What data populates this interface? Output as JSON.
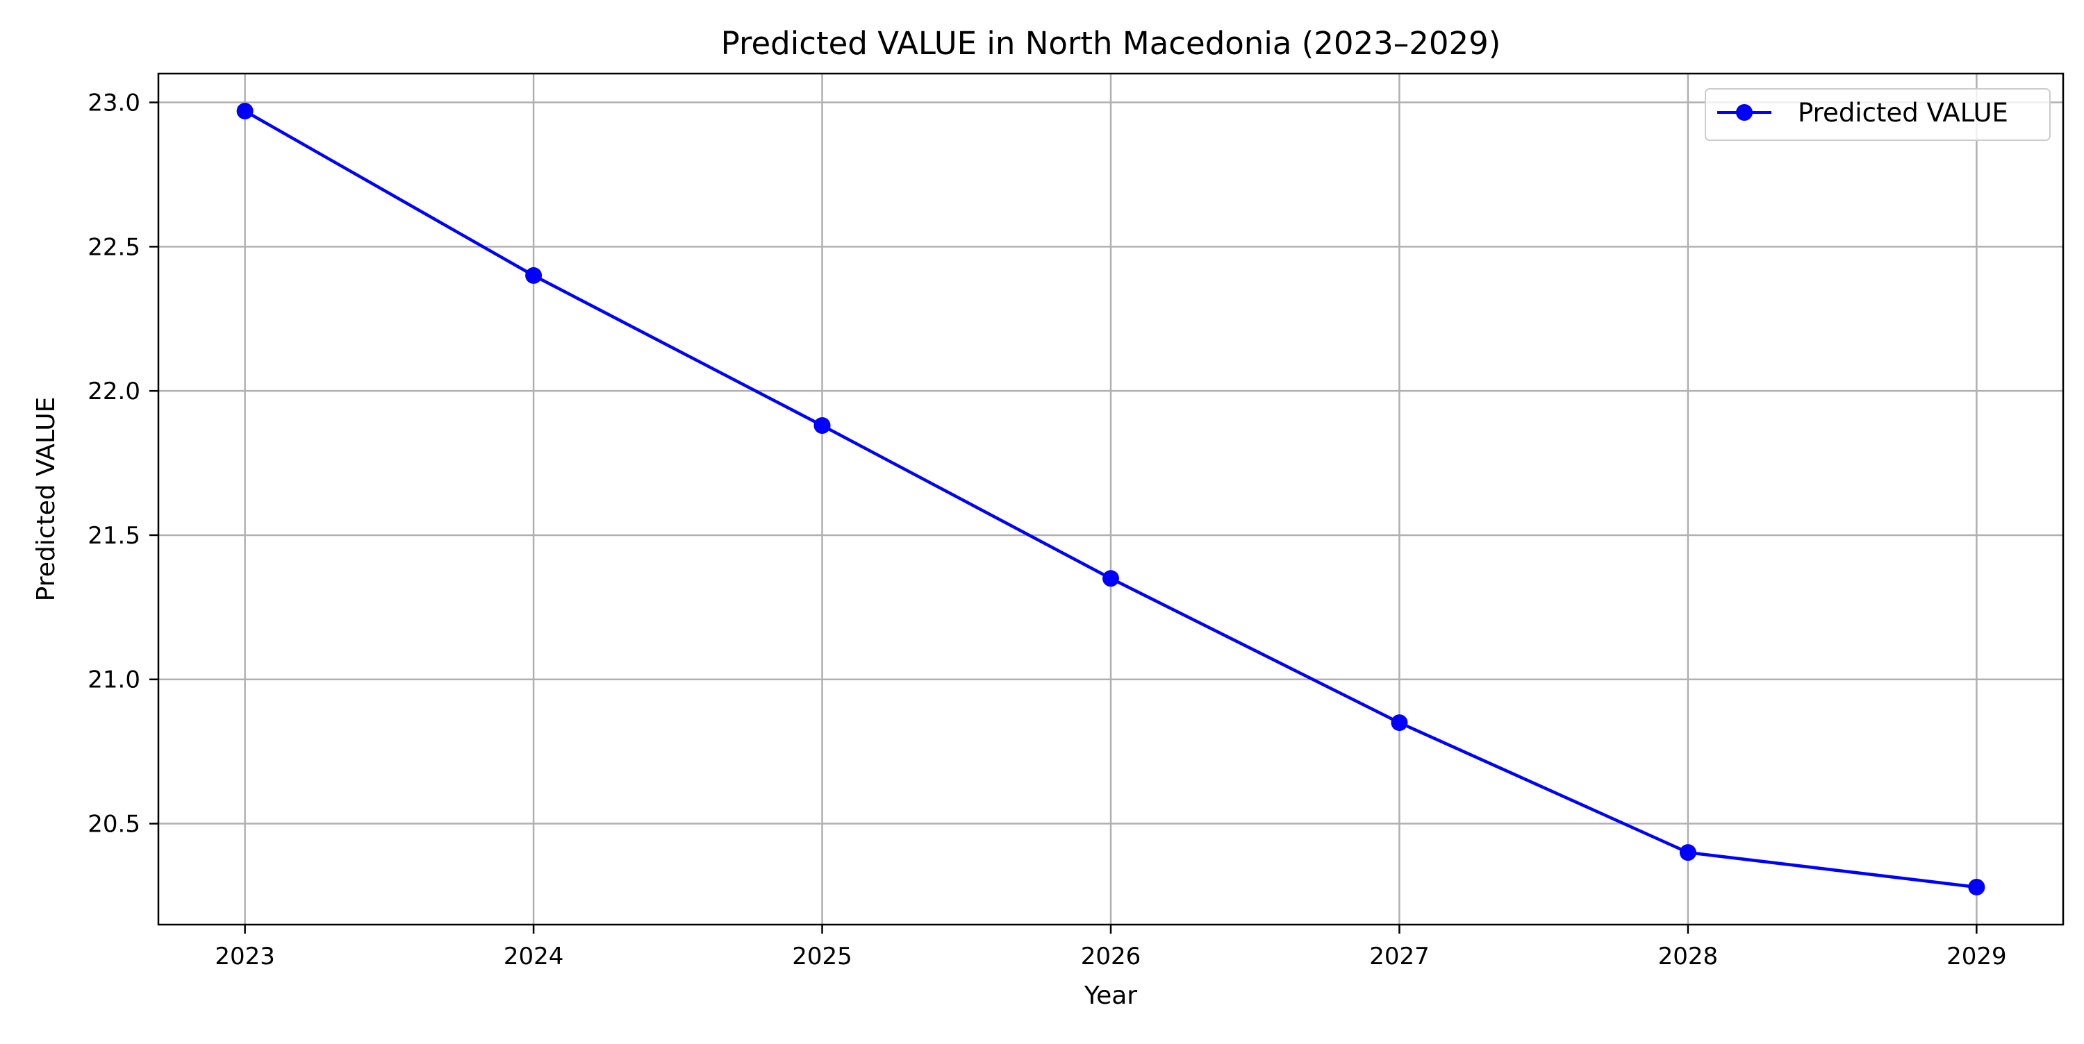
{
  "chart_data": {
    "type": "line",
    "title": "Predicted VALUE in North Macedonia (2023–2029)",
    "xlabel": "Year",
    "ylabel": "Predicted VALUE",
    "x": [
      2023,
      2024,
      2025,
      2026,
      2027,
      2028,
      2029
    ],
    "series": [
      {
        "name": "Predicted VALUE",
        "values": [
          22.97,
          22.4,
          21.88,
          21.35,
          20.85,
          20.4,
          20.28
        ],
        "color": "#0000ff",
        "marker": "circle"
      }
    ],
    "xlim": [
      2022.7,
      2029.3
    ],
    "ylim": [
      20.15,
      23.1
    ],
    "x_ticks": [
      "2023",
      "2024",
      "2025",
      "2026",
      "2027",
      "2028",
      "2029"
    ],
    "y_ticks": [
      "20.5",
      "21.0",
      "21.5",
      "22.0",
      "22.5",
      "23.0"
    ],
    "grid": true,
    "legend_position": "top-right"
  }
}
